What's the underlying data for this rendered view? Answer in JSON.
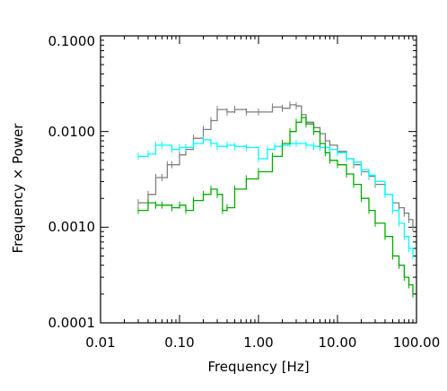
{
  "chart_data": {
    "type": "line",
    "title": "",
    "xlabel": "Frequency [Hz]",
    "ylabel": "Frequency × Power",
    "xscale": "log",
    "yscale": "log",
    "xlim": [
      0.01,
      100
    ],
    "ylim": [
      0.0001,
      0.1
    ],
    "grid": false,
    "legend": "none",
    "x_ticks": [
      {
        "value": 0.01,
        "label": "0.01"
      },
      {
        "value": 0.1,
        "label": "0.10"
      },
      {
        "value": 1,
        "label": "1.00"
      },
      {
        "value": 10,
        "label": "10.00"
      },
      {
        "value": 100,
        "label": "100.00"
      }
    ],
    "y_ticks": [
      {
        "value": 0.0001,
        "label": "0.0001"
      },
      {
        "value": 0.001,
        "label": "0.0010"
      },
      {
        "value": 0.01,
        "label": "0.0100"
      },
      {
        "value": 0.1,
        "label": "0.1000"
      }
    ],
    "series": [
      {
        "color": "#7f7f7f",
        "x": [
          0.03,
          0.04,
          0.05,
          0.06,
          0.07,
          0.08,
          0.1,
          0.12,
          0.15,
          0.2,
          0.25,
          0.3,
          0.4,
          0.5,
          0.7,
          1.0,
          1.5,
          2.0,
          2.5,
          3.0,
          3.5,
          4.0,
          5.0,
          6.0,
          7.0,
          8.0,
          10.0,
          13.0,
          16.0,
          20.0,
          25.0,
          30.0,
          40.0,
          50.0,
          60.0,
          70.0,
          80.0,
          90.0
        ],
        "y": [
          0.0018,
          0.0022,
          0.0033,
          0.0033,
          0.0045,
          0.0045,
          0.0057,
          0.0065,
          0.0085,
          0.0105,
          0.013,
          0.017,
          0.016,
          0.017,
          0.016,
          0.016,
          0.018,
          0.0175,
          0.019,
          0.0185,
          0.015,
          0.0125,
          0.011,
          0.0095,
          0.008,
          0.0072,
          0.0062,
          0.0052,
          0.0045,
          0.0038,
          0.0034,
          0.0028,
          0.0022,
          0.0018,
          0.0016,
          0.0014,
          0.0012,
          0.001
        ]
      },
      {
        "color": "#00ffff",
        "x": [
          0.03,
          0.04,
          0.05,
          0.06,
          0.08,
          0.1,
          0.12,
          0.15,
          0.2,
          0.25,
          0.3,
          0.4,
          0.5,
          0.7,
          1.0,
          1.3,
          1.6,
          2.0,
          2.5,
          3.0,
          4.0,
          5.0,
          6.0,
          8.0,
          10.0,
          13.0,
          16.0,
          20.0,
          25.0,
          30.0,
          40.0,
          50.0,
          60.0,
          70.0,
          80.0,
          90.0
        ],
        "y": [
          0.0055,
          0.0058,
          0.0072,
          0.0072,
          0.0065,
          0.0068,
          0.0068,
          0.0075,
          0.0082,
          0.0075,
          0.007,
          0.0072,
          0.007,
          0.0068,
          0.0052,
          0.0065,
          0.007,
          0.0072,
          0.0075,
          0.0075,
          0.0072,
          0.007,
          0.0068,
          0.0065,
          0.006,
          0.0052,
          0.0048,
          0.004,
          0.0035,
          0.003,
          0.0022,
          0.0015,
          0.0011,
          0.0008,
          0.0006,
          0.0005
        ]
      },
      {
        "color": "#00aa00",
        "x": [
          0.03,
          0.04,
          0.05,
          0.06,
          0.08,
          0.1,
          0.12,
          0.15,
          0.2,
          0.25,
          0.3,
          0.35,
          0.4,
          0.5,
          0.7,
          1.0,
          1.5,
          2.0,
          2.5,
          3.0,
          3.5,
          4.0,
          5.0,
          6.0,
          7.0,
          8.0,
          10.0,
          13.0,
          16.0,
          20.0,
          25.0,
          30.0,
          40.0,
          50.0,
          60.0,
          70.0,
          80.0,
          90.0
        ],
        "y": [
          0.0015,
          0.0018,
          0.0017,
          0.0017,
          0.0016,
          0.0017,
          0.0015,
          0.0019,
          0.0022,
          0.0025,
          0.0022,
          0.0015,
          0.0016,
          0.0025,
          0.0032,
          0.0038,
          0.0055,
          0.0075,
          0.01,
          0.0125,
          0.014,
          0.012,
          0.01,
          0.0075,
          0.006,
          0.005,
          0.0045,
          0.0036,
          0.0028,
          0.002,
          0.0015,
          0.0011,
          0.0008,
          0.0005,
          0.0004,
          0.0003,
          0.00025,
          0.0002
        ]
      }
    ]
  }
}
